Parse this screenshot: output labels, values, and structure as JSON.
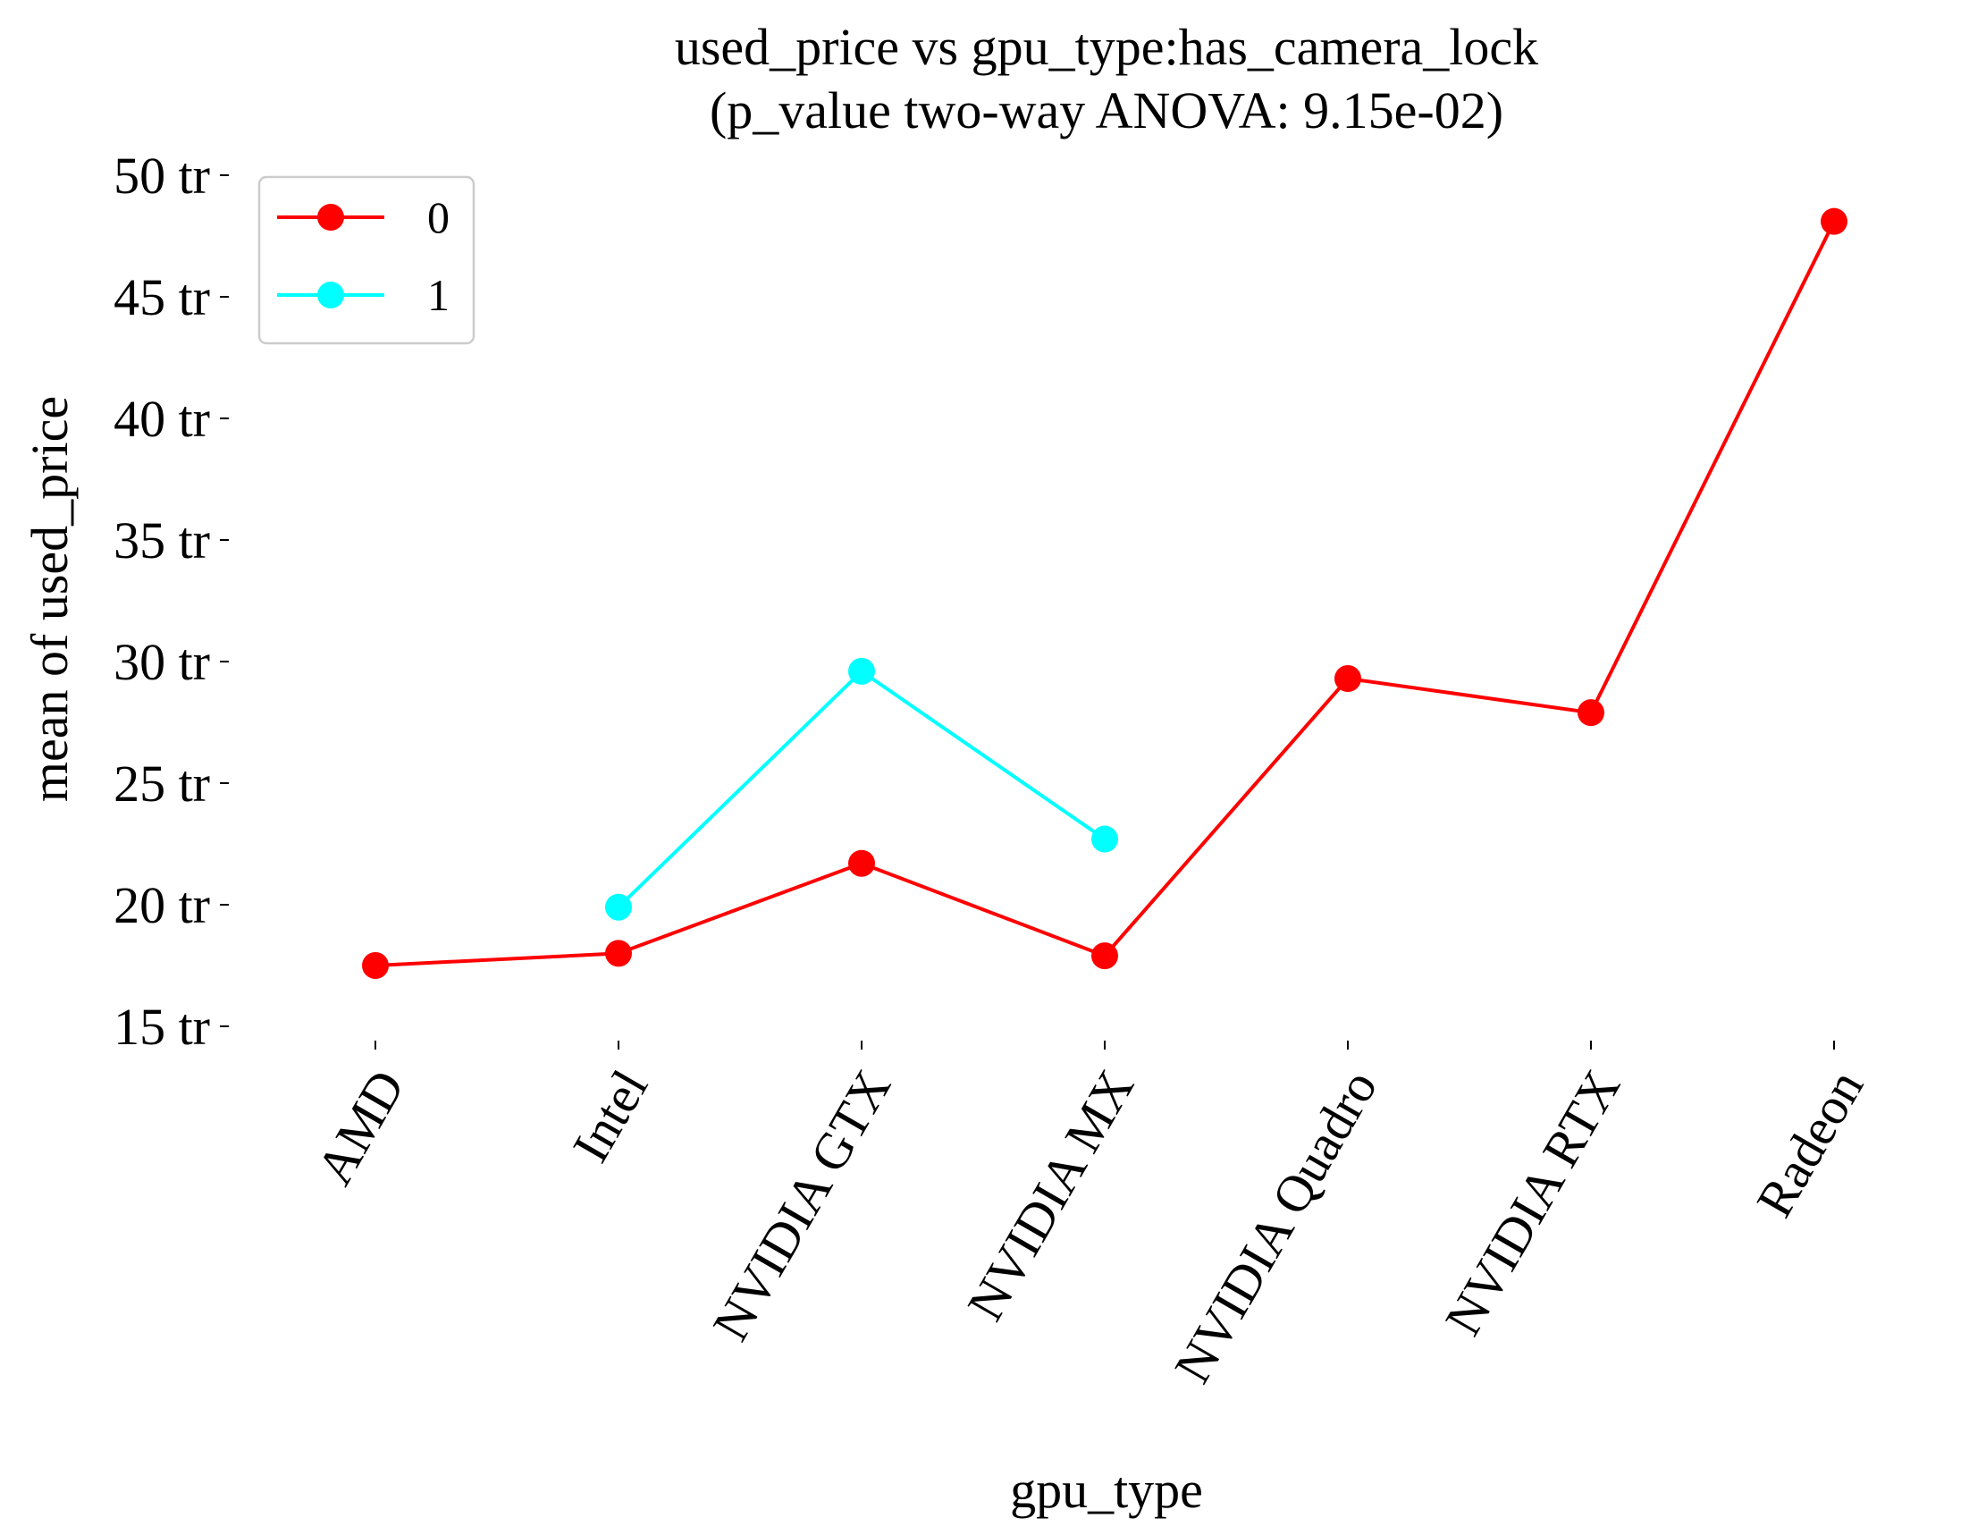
{
  "chart_data": {
    "type": "line",
    "title": "used_price vs gpu_type:has_camera_lock",
    "subtitle": "(p_value two-way ANOVA: 9.15e-02)",
    "xlabel": "gpu_type",
    "ylabel": "mean of used_price",
    "categories": [
      "AMD",
      "Intel",
      "NVIDIA GTX",
      "NVIDIA MX",
      "NVIDIA Quadro",
      "NVIDIA RTX",
      "Radeon"
    ],
    "yticks": [
      15,
      20,
      25,
      30,
      35,
      40,
      45,
      50
    ],
    "ytick_labels": [
      "15 tr",
      "20 tr",
      "25 tr",
      "30 tr",
      "35 tr",
      "40 tr",
      "45 tr",
      "50 tr"
    ],
    "ylim": [
      15,
      50
    ],
    "grid": false,
    "legend_position": "top-left",
    "series": [
      {
        "name": "0",
        "color": "#ff0000",
        "values": [
          17.5,
          18.0,
          21.7,
          17.9,
          29.3,
          27.9,
          48.1
        ]
      },
      {
        "name": "1",
        "color": "#00ffff",
        "values": [
          null,
          19.9,
          29.6,
          22.7,
          null,
          null,
          null
        ]
      }
    ]
  }
}
